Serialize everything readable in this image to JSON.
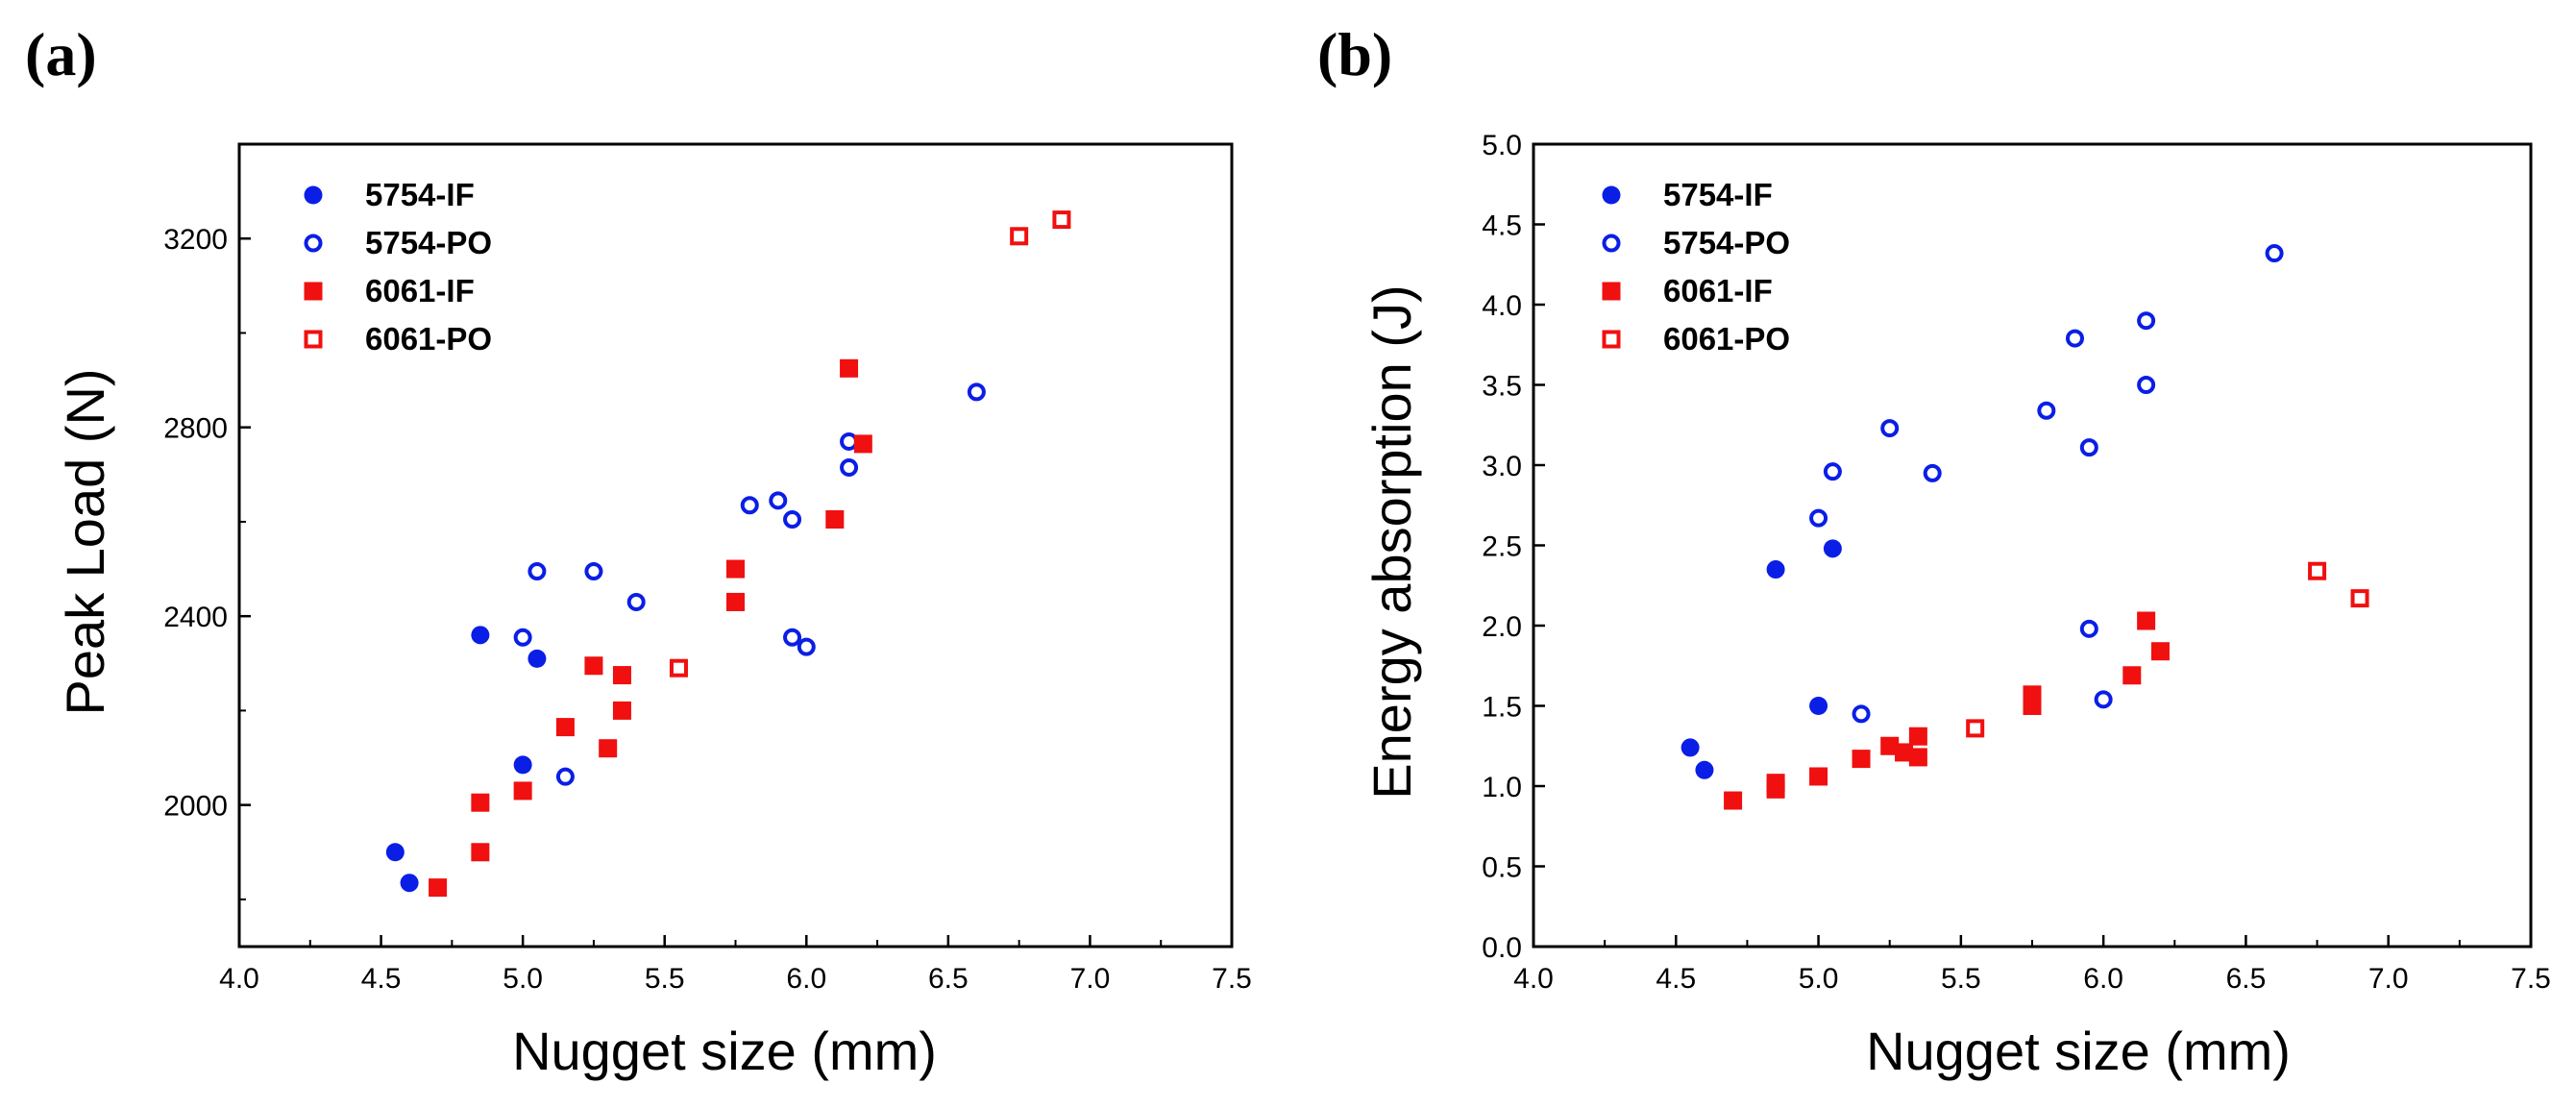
{
  "colors": {
    "blue": "#0a1ee6",
    "red": "#f01010",
    "axis": "#000000"
  },
  "chart_data": [
    {
      "panel_label": "(a)",
      "type": "scatter",
      "xlabel": "Nugget size (mm)",
      "ylabel": "Peak Load (N)",
      "xlim": [
        4.0,
        7.5
      ],
      "ylim": [
        1700,
        3400
      ],
      "xticks": [
        4.0,
        4.5,
        5.0,
        5.5,
        6.0,
        6.5,
        7.0,
        7.5
      ],
      "xtick_labels": [
        "4.0",
        "4.5",
        "5.0",
        "5.5",
        "6.0",
        "6.5",
        "7.0",
        "7.5"
      ],
      "yticks": [
        2000,
        2400,
        2800,
        3200
      ],
      "ytick_labels": [
        "2000",
        "2400",
        "2800",
        "3200"
      ],
      "yminor": [
        1800,
        2200,
        2600,
        3000
      ],
      "legend_position": "top-left",
      "series": [
        {
          "name": "5754-IF",
          "marker": "circle",
          "filled": true,
          "color": "blue",
          "points": [
            [
              4.55,
              1900
            ],
            [
              4.6,
              1835
            ],
            [
              4.85,
              2360
            ],
            [
              5.05,
              2310
            ],
            [
              5.0,
              2085
            ]
          ]
        },
        {
          "name": "5754-PO",
          "marker": "circle",
          "filled": false,
          "color": "blue",
          "points": [
            [
              5.0,
              2355
            ],
            [
              5.05,
              2495
            ],
            [
              5.15,
              2060
            ],
            [
              5.25,
              2495
            ],
            [
              5.4,
              2430
            ],
            [
              5.8,
              2635
            ],
            [
              5.9,
              2645
            ],
            [
              5.95,
              2605
            ],
            [
              5.95,
              2355
            ],
            [
              6.0,
              2335
            ],
            [
              6.15,
              2770
            ],
            [
              6.15,
              2715
            ],
            [
              6.6,
              2875
            ]
          ]
        },
        {
          "name": "6061-IF",
          "marker": "square",
          "filled": true,
          "color": "red",
          "points": [
            [
              4.7,
              1825
            ],
            [
              4.85,
              2005
            ],
            [
              4.85,
              1900
            ],
            [
              5.0,
              2030
            ],
            [
              5.15,
              2165
            ],
            [
              5.25,
              2295
            ],
            [
              5.3,
              2120
            ],
            [
              5.35,
              2275
            ],
            [
              5.35,
              2200
            ],
            [
              5.75,
              2500
            ],
            [
              5.75,
              2430
            ],
            [
              6.1,
              2605
            ],
            [
              6.15,
              2925
            ],
            [
              6.2,
              2765
            ]
          ]
        },
        {
          "name": "6061-PO",
          "marker": "square",
          "filled": false,
          "color": "red",
          "points": [
            [
              5.55,
              2290
            ],
            [
              6.75,
              3205
            ],
            [
              6.9,
              3240
            ]
          ]
        }
      ]
    },
    {
      "panel_label": "(b)",
      "type": "scatter",
      "xlabel": "Nugget size (mm)",
      "ylabel": "Energy absorption (J)",
      "xlim": [
        4.0,
        7.5
      ],
      "ylim": [
        0.0,
        5.0
      ],
      "xticks": [
        4.0,
        4.5,
        5.0,
        5.5,
        6.0,
        6.5,
        7.0,
        7.5
      ],
      "xtick_labels": [
        "4.0",
        "4.5",
        "5.0",
        "5.5",
        "6.0",
        "6.5",
        "7.0",
        "7.5"
      ],
      "yticks": [
        0.0,
        0.5,
        1.0,
        1.5,
        2.0,
        2.5,
        3.0,
        3.5,
        4.0,
        4.5,
        5.0
      ],
      "ytick_labels": [
        "0.0",
        "0.5",
        "1.0",
        "1.5",
        "2.0",
        "2.5",
        "3.0",
        "3.5",
        "4.0",
        "4.5",
        "5.0"
      ],
      "yminor": [],
      "legend_position": "top-left",
      "series": [
        {
          "name": "5754-IF",
          "marker": "circle",
          "filled": true,
          "color": "blue",
          "points": [
            [
              4.55,
              1.24
            ],
            [
              4.6,
              1.1
            ],
            [
              4.85,
              2.35
            ],
            [
              5.05,
              2.48
            ],
            [
              5.0,
              1.5
            ]
          ]
        },
        {
          "name": "5754-PO",
          "marker": "circle",
          "filled": false,
          "color": "blue",
          "points": [
            [
              5.0,
              2.67
            ],
            [
              5.05,
              2.96
            ],
            [
              5.15,
              1.45
            ],
            [
              5.25,
              3.23
            ],
            [
              5.4,
              2.95
            ],
            [
              5.8,
              3.34
            ],
            [
              5.9,
              3.79
            ],
            [
              5.95,
              3.11
            ],
            [
              5.95,
              1.98
            ],
            [
              6.0,
              1.54
            ],
            [
              6.15,
              3.9
            ],
            [
              6.15,
              3.5
            ],
            [
              6.6,
              4.32
            ]
          ]
        },
        {
          "name": "6061-IF",
          "marker": "square",
          "filled": true,
          "color": "red",
          "points": [
            [
              4.7,
              0.91
            ],
            [
              4.85,
              1.02
            ],
            [
              4.85,
              0.98
            ],
            [
              5.0,
              1.06
            ],
            [
              5.15,
              1.17
            ],
            [
              5.25,
              1.25
            ],
            [
              5.3,
              1.21
            ],
            [
              5.35,
              1.31
            ],
            [
              5.35,
              1.18
            ],
            [
              5.75,
              1.57
            ],
            [
              5.75,
              1.5
            ],
            [
              6.1,
              1.69
            ],
            [
              6.15,
              2.03
            ],
            [
              6.2,
              1.84
            ]
          ]
        },
        {
          "name": "6061-PO",
          "marker": "square",
          "filled": false,
          "color": "red",
          "points": [
            [
              5.55,
              1.36
            ],
            [
              6.75,
              2.34
            ],
            [
              6.9,
              2.17
            ]
          ]
        }
      ]
    }
  ]
}
